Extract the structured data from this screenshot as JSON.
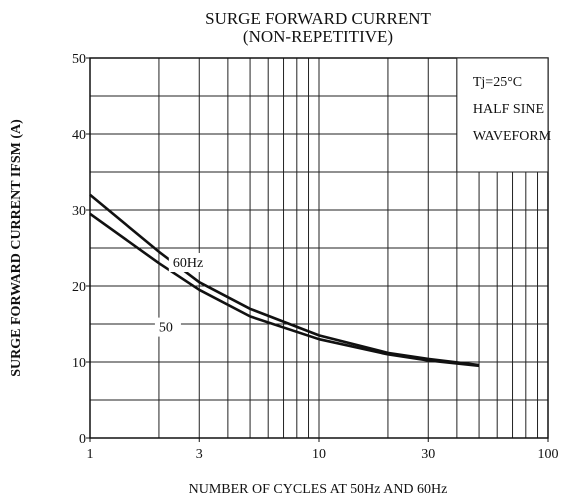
{
  "chart_data": {
    "type": "line",
    "title": [
      "SURGE FORWARD CURRENT",
      "(NON-REPETITIVE)"
    ],
    "xlabel": "NUMBER OF CYCLES AT 50Hz AND 60Hz",
    "ylabel": "SURGE FORWARD CURRENT  IFSM  (A)",
    "annotation": [
      "Tj=25°C",
      "HALF SINE",
      "WAVEFORM"
    ],
    "xscale": "log",
    "xlim": [
      1,
      100
    ],
    "xticks": [
      1,
      3,
      10,
      30,
      100
    ],
    "xgrid": [
      2,
      3,
      4,
      5,
      6,
      7,
      8,
      9,
      10,
      20,
      30,
      40,
      50,
      60,
      70,
      80,
      90
    ],
    "ylim": [
      0,
      50
    ],
    "yticks": [
      0,
      10,
      20,
      30,
      40,
      50
    ],
    "ygrid": [
      5,
      10,
      15,
      20,
      25,
      30,
      35,
      40,
      45
    ],
    "x": [
      1,
      2,
      3,
      5,
      10,
      20,
      30,
      50
    ],
    "series": [
      {
        "name": "60Hz",
        "color": "#111111",
        "values": [
          32,
          24.5,
          20.5,
          17,
          13.5,
          11.2,
          10.4,
          9.6
        ]
      },
      {
        "name": "50",
        "color": "#111111",
        "values": [
          29.5,
          23,
          19.5,
          16,
          13,
          11,
          10.2,
          9.5
        ]
      }
    ]
  }
}
